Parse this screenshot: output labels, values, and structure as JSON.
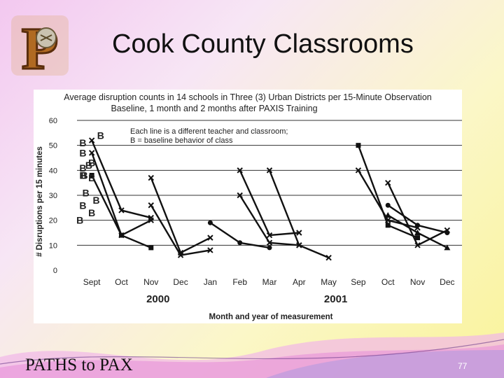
{
  "slide": {
    "title": "Cook County Classrooms",
    "brand": "PATHS to PAX",
    "number": "77",
    "logo_letter": "P"
  },
  "chart_data": {
    "type": "line",
    "title": "Average disruption counts in 14 schools in Three (3) Urban Districts per 15-Minute Observation",
    "subtitle": "Baseline, 1 month and 2 months after PAXIS Training",
    "xlabel": "Month and year of measurement",
    "ylabel": "# Disruptions per 15 minutes",
    "ylim": [
      0,
      60
    ],
    "yticks": [
      0,
      10,
      20,
      30,
      40,
      50,
      60
    ],
    "categories": [
      "Sept",
      "Oct",
      "Nov",
      "Dec",
      "Jan",
      "Feb",
      "Mar",
      "Apr",
      "May",
      "Sep",
      "Oct",
      "Nov",
      "Dec"
    ],
    "year_labels": [
      {
        "text": "2000",
        "category_index": 2
      },
      {
        "text": "2001",
        "category_index": 8
      }
    ],
    "annotation": [
      "Each line is a different teacher and classroom;",
      "B = baseline behavior of class"
    ],
    "baseline_marker": "B",
    "grid": true,
    "series": [
      {
        "points": [
          [
            0,
            52
          ],
          [
            1,
            24
          ],
          [
            2,
            21
          ]
        ],
        "marker": "star",
        "baseline_label": {
          "category_index": 0.3,
          "value": 54
        }
      },
      {
        "points": [
          [
            0,
            47
          ],
          [
            1,
            14
          ],
          [
            2,
            20
          ]
        ],
        "marker": "star",
        "baseline_label": {
          "category_index": -0.3,
          "value": 47
        }
      },
      {
        "points": [
          [
            0,
            38
          ],
          [
            1,
            14
          ],
          [
            2,
            9
          ]
        ],
        "marker": "square",
        "baseline_label": {
          "category_index": -0.3,
          "value": 38
        }
      },
      {
        "points": [
          [
            2,
            37
          ],
          [
            3,
            7
          ],
          [
            4,
            13
          ]
        ],
        "marker": "star",
        "baseline_label": {
          "category_index": -0.25,
          "value": 38
        }
      },
      {
        "points": [
          [
            2,
            26
          ],
          [
            3,
            6
          ],
          [
            4,
            8
          ]
        ],
        "marker": "star",
        "baseline_label": {
          "category_index": -0.3,
          "value": 26
        }
      },
      {
        "points": [
          [
            4,
            19
          ],
          [
            5,
            11
          ],
          [
            6,
            9
          ]
        ],
        "marker": "circle",
        "baseline_label": {
          "category_index": 0,
          "value": 23
        }
      },
      {
        "points": [
          [
            5,
            40
          ],
          [
            6,
            14
          ],
          [
            7,
            15
          ]
        ],
        "marker": "star",
        "baseline_label": {
          "category_index": -0.1,
          "value": 42
        }
      },
      {
        "points": [
          [
            5,
            30
          ],
          [
            6,
            11
          ],
          [
            7,
            10
          ]
        ],
        "marker": "star",
        "baseline_label": {
          "category_index": -0.2,
          "value": 31
        }
      },
      {
        "points": [
          [
            6,
            40
          ],
          [
            7,
            10
          ],
          [
            8,
            5
          ]
        ],
        "marker": "star",
        "baseline_label": {
          "category_index": 0,
          "value": 43
        }
      },
      {
        "points": [
          [
            9,
            50
          ],
          [
            10,
            18
          ],
          [
            11,
            13
          ]
        ],
        "marker": "square",
        "baseline_label": {
          "category_index": -0.3,
          "value": 51
        }
      },
      {
        "points": [
          [
            9,
            40
          ],
          [
            10,
            20
          ],
          [
            11,
            17
          ]
        ],
        "marker": "star",
        "baseline_label": {
          "category_index": -0.3,
          "value": 41
        }
      },
      {
        "points": [
          [
            10,
            35
          ],
          [
            11,
            10
          ],
          [
            12,
            16
          ]
        ],
        "marker": "star",
        "baseline_label": {
          "category_index": 0,
          "value": 37
        }
      },
      {
        "points": [
          [
            10,
            26
          ],
          [
            11,
            18
          ],
          [
            12,
            15
          ]
        ],
        "marker": "circle",
        "baseline_label": {
          "category_index": 0.15,
          "value": 28
        }
      },
      {
        "points": [
          [
            10,
            22
          ],
          [
            11,
            15
          ],
          [
            12,
            9
          ]
        ],
        "marker": "triangle",
        "baseline_label": {
          "category_index": -0.4,
          "value": 20
        }
      }
    ]
  }
}
